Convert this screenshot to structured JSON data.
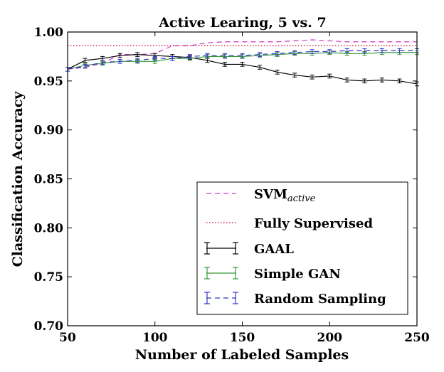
{
  "chart_data": {
    "type": "line",
    "title": "Active Learing, 5 vs. 7",
    "xlabel": "Number of Labeled Samples",
    "ylabel": "Classification Accuracy",
    "xlim": [
      50,
      250
    ],
    "ylim": [
      0.7,
      1.0
    ],
    "xticks": [
      50,
      100,
      150,
      200,
      250
    ],
    "yticks": [
      0.7,
      0.75,
      0.8,
      0.85,
      0.9,
      0.95,
      1.0
    ],
    "xtick_labels": [
      "50",
      "100",
      "150",
      "200",
      "250"
    ],
    "ytick_labels": [
      "0.70",
      "0.75",
      "0.80",
      "0.85",
      "0.90",
      "0.95",
      "1.00"
    ],
    "grid": false,
    "legend_position": "bottom-right",
    "legend": {
      "svm_main": "SVM",
      "svm_sub": "active",
      "fully_supervised": "Fully Supervised",
      "gaal": "GAAL",
      "simple_gan": "Simple GAN",
      "random_sampling": "Random Sampling"
    },
    "series": [
      {
        "key": "svm",
        "color": "#cc33cc",
        "style": "dashed",
        "errorbars": false,
        "x": [
          50,
          60,
          70,
          80,
          90,
          100,
          110,
          120,
          130,
          140,
          150,
          160,
          170,
          180,
          190,
          200,
          210,
          220,
          230,
          240,
          250
        ],
        "y": [
          0.962,
          0.964,
          0.968,
          0.977,
          0.977,
          0.978,
          0.986,
          0.986,
          0.989,
          0.99,
          0.99,
          0.99,
          0.99,
          0.991,
          0.992,
          0.991,
          0.99,
          0.99,
          0.99,
          0.99,
          0.99
        ]
      },
      {
        "key": "fully_supervised",
        "color": "#cc0033",
        "style": "dotted",
        "errorbars": false,
        "x": [
          50,
          250
        ],
        "y": [
          0.986,
          0.986
        ]
      },
      {
        "key": "gaal",
        "color": "#000000",
        "style": "solid",
        "errorbars": true,
        "x": [
          50,
          60,
          70,
          80,
          90,
          100,
          110,
          120,
          130,
          140,
          150,
          160,
          170,
          180,
          190,
          200,
          210,
          220,
          230,
          240,
          250
        ],
        "y": [
          0.962,
          0.971,
          0.973,
          0.976,
          0.977,
          0.976,
          0.975,
          0.974,
          0.971,
          0.967,
          0.967,
          0.964,
          0.959,
          0.956,
          0.954,
          0.955,
          0.951,
          0.95,
          0.951,
          0.95,
          0.947
        ],
        "err": [
          0.002,
          0.002,
          0.002,
          0.002,
          0.002,
          0.002,
          0.002,
          0.002,
          0.002,
          0.002,
          0.002,
          0.002,
          0.002,
          0.002,
          0.002,
          0.002,
          0.002,
          0.002,
          0.002,
          0.002,
          0.002
        ]
      },
      {
        "key": "simple_gan",
        "color": "#339933",
        "style": "solid",
        "errorbars": true,
        "x": [
          50,
          60,
          70,
          80,
          90,
          100,
          110,
          120,
          130,
          140,
          150,
          160,
          170,
          180,
          190,
          200,
          210,
          220,
          230,
          240,
          250
        ],
        "y": [
          0.962,
          0.966,
          0.968,
          0.97,
          0.97,
          0.97,
          0.973,
          0.973,
          0.975,
          0.975,
          0.975,
          0.976,
          0.977,
          0.978,
          0.978,
          0.979,
          0.978,
          0.978,
          0.979,
          0.979,
          0.979
        ],
        "err": [
          0.002,
          0.002,
          0.002,
          0.002,
          0.002,
          0.002,
          0.002,
          0.002,
          0.002,
          0.002,
          0.002,
          0.002,
          0.002,
          0.002,
          0.002,
          0.002,
          0.002,
          0.002,
          0.002,
          0.002,
          0.002
        ]
      },
      {
        "key": "random_sampling",
        "color": "#3333cc",
        "style": "dashed",
        "errorbars": true,
        "x": [
          50,
          60,
          70,
          80,
          90,
          100,
          110,
          120,
          130,
          140,
          150,
          160,
          170,
          180,
          190,
          200,
          210,
          220,
          230,
          240,
          250
        ],
        "y": [
          0.962,
          0.965,
          0.969,
          0.97,
          0.971,
          0.973,
          0.973,
          0.975,
          0.976,
          0.976,
          0.976,
          0.977,
          0.978,
          0.979,
          0.98,
          0.98,
          0.981,
          0.981,
          0.981,
          0.981,
          0.981
        ],
        "err": [
          0.002,
          0.002,
          0.002,
          0.002,
          0.002,
          0.002,
          0.002,
          0.002,
          0.002,
          0.002,
          0.002,
          0.002,
          0.002,
          0.002,
          0.002,
          0.002,
          0.002,
          0.002,
          0.002,
          0.002,
          0.002
        ]
      }
    ]
  }
}
